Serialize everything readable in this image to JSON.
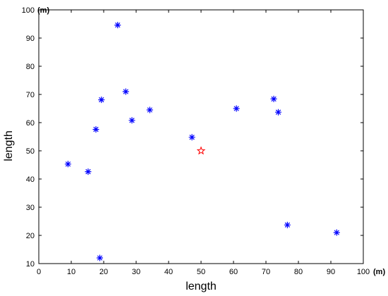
{
  "chart_data": {
    "type": "scatter",
    "title": "",
    "xlabel": "length",
    "ylabel": "length",
    "xlim": [
      0,
      100
    ],
    "ylim": [
      10,
      100
    ],
    "x_ticks": [
      0,
      10,
      20,
      30,
      40,
      50,
      60,
      70,
      80,
      90,
      100
    ],
    "y_ticks": [
      10,
      20,
      30,
      40,
      50,
      60,
      70,
      80,
      90,
      100
    ],
    "x_tick_labels": [
      "0",
      "10",
      "20",
      "30",
      "40",
      "50",
      "60",
      "70",
      "80",
      "90",
      "100"
    ],
    "y_tick_labels": [
      "10",
      "20",
      "30",
      "40",
      "50",
      "60",
      "70",
      "80",
      "90",
      "100"
    ],
    "x_unit": "(m)",
    "y_unit": "(m)",
    "grid": false,
    "series": [
      {
        "marker": "asterisk",
        "color": "#0000ff",
        "points": [
          {
            "x": 9,
            "y": 45.3
          },
          {
            "x": 15.2,
            "y": 42.6
          },
          {
            "x": 17.6,
            "y": 57.6
          },
          {
            "x": 18.8,
            "y": 12
          },
          {
            "x": 19.3,
            "y": 68.1
          },
          {
            "x": 24.3,
            "y": 94.6
          },
          {
            "x": 26.8,
            "y": 71
          },
          {
            "x": 28.7,
            "y": 60.8
          },
          {
            "x": 34.2,
            "y": 64.5
          },
          {
            "x": 47.2,
            "y": 54.8
          },
          {
            "x": 60.9,
            "y": 65
          },
          {
            "x": 72.4,
            "y": 68.4
          },
          {
            "x": 73.8,
            "y": 63.7
          },
          {
            "x": 76.6,
            "y": 23.7
          },
          {
            "x": 91.8,
            "y": 21
          }
        ]
      },
      {
        "marker": "pentagram",
        "color": "#ff0000",
        "points": [
          {
            "x": 50,
            "y": 50
          }
        ]
      }
    ]
  }
}
